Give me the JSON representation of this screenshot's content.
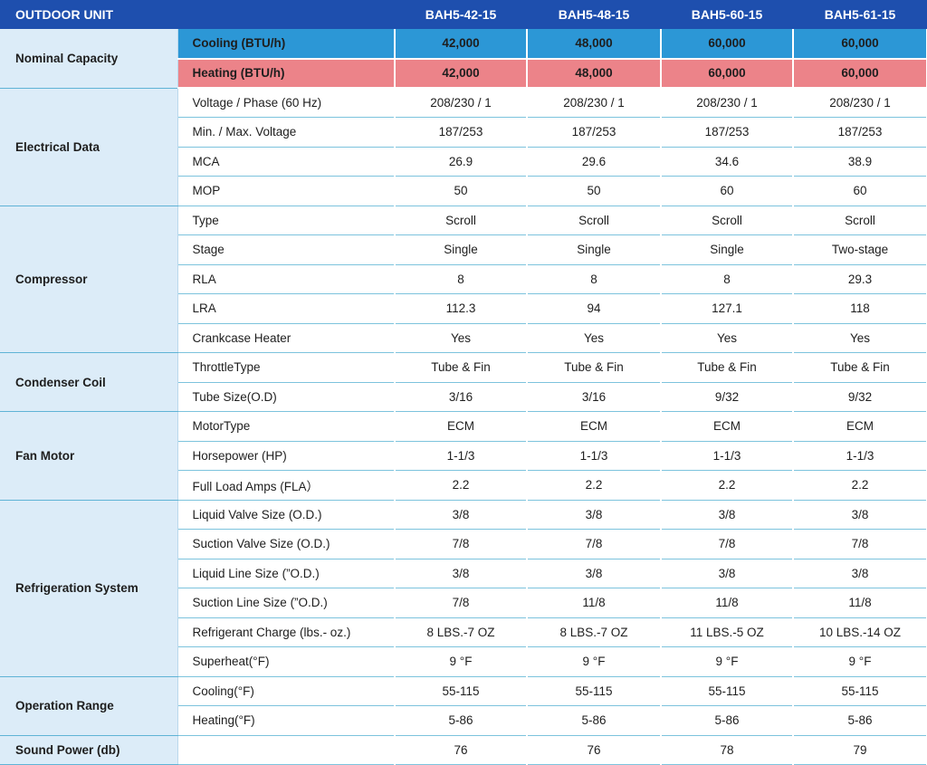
{
  "header": {
    "label": "OUTDOOR UNIT",
    "models": [
      "BAH5-42-15",
      "BAH5-48-15",
      "BAH5-60-15",
      "BAH5-61-15"
    ]
  },
  "groups": [
    {
      "name": "Nominal Capacity",
      "rows": [
        {
          "param": "Cooling (BTU/h)",
          "style": "cooling",
          "values": [
            "42,000",
            "48,000",
            "60,000",
            "60,000"
          ]
        },
        {
          "param": "Heating (BTU/h)",
          "style": "heating",
          "values": [
            "42,000",
            "48,000",
            "60,000",
            "60,000"
          ]
        }
      ]
    },
    {
      "name": "Electrical Data",
      "rows": [
        {
          "param": "Voltage / Phase (60 Hz)",
          "values": [
            "208/230 / 1",
            "208/230 / 1",
            "208/230 / 1",
            "208/230 / 1"
          ]
        },
        {
          "param": "Min. / Max. Voltage",
          "values": [
            "187/253",
            "187/253",
            "187/253",
            "187/253"
          ]
        },
        {
          "param": "MCA",
          "values": [
            "26.9",
            "29.6",
            "34.6",
            "38.9"
          ]
        },
        {
          "param": "MOP",
          "values": [
            "50",
            "50",
            "60",
            "60"
          ]
        }
      ]
    },
    {
      "name": "Compressor",
      "rows": [
        {
          "param": "Type",
          "values": [
            "Scroll",
            "Scroll",
            "Scroll",
            "Scroll"
          ]
        },
        {
          "param": "Stage",
          "values": [
            "Single",
            "Single",
            "Single",
            "Two-stage"
          ]
        },
        {
          "param": "RLA",
          "values": [
            "8",
            "8",
            "8",
            "29.3"
          ]
        },
        {
          "param": "LRA",
          "values": [
            "112.3",
            "94",
            "127.1",
            "118"
          ]
        },
        {
          "param": "Crankcase Heater",
          "values": [
            "Yes",
            "Yes",
            "Yes",
            "Yes"
          ]
        }
      ]
    },
    {
      "name": "Condenser Coil",
      "rows": [
        {
          "param": "ThrottleType",
          "values": [
            "Tube & Fin",
            "Tube & Fin",
            "Tube & Fin",
            "Tube & Fin"
          ]
        },
        {
          "param": "Tube Size(O.D)",
          "values": [
            "3/16",
            "3/16",
            "9/32",
            "9/32"
          ]
        }
      ]
    },
    {
      "name": "Fan Motor",
      "rows": [
        {
          "param": "MotorType",
          "values": [
            "ECM",
            "ECM",
            "ECM",
            "ECM"
          ]
        },
        {
          "param": "Horsepower (HP)",
          "values": [
            "1-1/3",
            "1-1/3",
            "1-1/3",
            "1-1/3"
          ]
        },
        {
          "param": "Full Load Amps (FLA）",
          "values": [
            "2.2",
            "2.2",
            "2.2",
            "2.2"
          ]
        }
      ]
    },
    {
      "name": "Refrigeration System",
      "rows": [
        {
          "param": "Liquid Valve Size (O.D.)",
          "values": [
            "3/8",
            "3/8",
            "3/8",
            "3/8"
          ]
        },
        {
          "param": "Suction Valve Size (O.D.)",
          "values": [
            "7/8",
            "7/8",
            "7/8",
            "7/8"
          ]
        },
        {
          "param": "Liquid Line Size (”O.D.)",
          "values": [
            "3/8",
            "3/8",
            "3/8",
            "3/8"
          ]
        },
        {
          "param": "Suction Line Size (”O.D.)",
          "values": [
            "7/8",
            "11/8",
            "11/8",
            "11/8"
          ]
        },
        {
          "param": "Refrigerant Charge (lbs.- oz.)",
          "values": [
            "8 LBS.-7 OZ",
            "8 LBS.-7 OZ",
            "11 LBS.-5 OZ",
            "10 LBS.-14 OZ"
          ]
        },
        {
          "param": "Superheat(°F)",
          "values": [
            "9 °F",
            "9 °F",
            "9 °F",
            "9 °F"
          ]
        }
      ]
    },
    {
      "name": "Operation Range",
      "rows": [
        {
          "param": "Cooling(°F)",
          "values": [
            "55-115",
            "55-115",
            "55-115",
            "55-115"
          ]
        },
        {
          "param": "Heating(°F)",
          "values": [
            "5-86",
            "5-86",
            "5-86",
            "5-86"
          ]
        }
      ]
    },
    {
      "name": "Sound Power (db)",
      "rows": [
        {
          "param": "",
          "values": [
            "76",
            "76",
            "78",
            "79"
          ]
        }
      ]
    }
  ]
}
